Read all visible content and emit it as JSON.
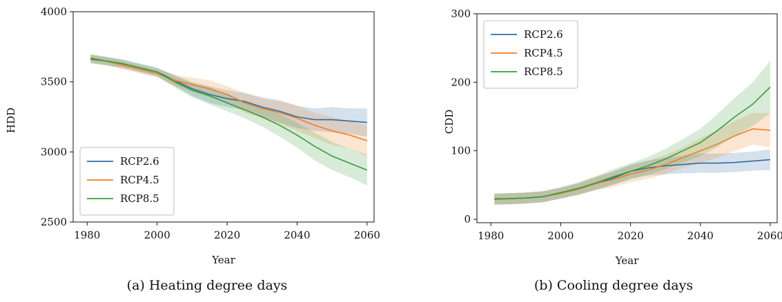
{
  "chart_data": [
    {
      "type": "line",
      "caption": "(a) Heating degree days",
      "title": "",
      "xlabel": "Year",
      "ylabel": "HDD",
      "xlim": [
        1976,
        2062
      ],
      "ylim": [
        2500,
        4000
      ],
      "xticks": [
        1980,
        2000,
        2020,
        2040,
        2060
      ],
      "yticks": [
        2500,
        3000,
        3500,
        4000
      ],
      "legend_position": "lower-left",
      "grid": false,
      "uncertainty_band": true,
      "series": [
        {
          "name": "RCP2.6",
          "color": "#2f6b9e",
          "x": [
            1981,
            1985,
            1990,
            1995,
            2000,
            2005,
            2010,
            2015,
            2020,
            2025,
            2030,
            2035,
            2040,
            2045,
            2050,
            2055,
            2060
          ],
          "y": [
            3660,
            3650,
            3630,
            3600,
            3570,
            3510,
            3450,
            3410,
            3380,
            3360,
            3320,
            3290,
            3250,
            3230,
            3230,
            3220,
            3210
          ],
          "band": [
            30,
            30,
            30,
            30,
            30,
            40,
            50,
            60,
            60,
            60,
            70,
            80,
            80,
            80,
            90,
            90,
            100
          ]
        },
        {
          "name": "RCP4.5",
          "color": "#ef7d22",
          "x": [
            1981,
            1985,
            1990,
            1995,
            2000,
            2005,
            2010,
            2015,
            2020,
            2025,
            2030,
            2035,
            2040,
            2045,
            2050,
            2055,
            2060
          ],
          "y": [
            3665,
            3650,
            3620,
            3590,
            3560,
            3510,
            3480,
            3450,
            3410,
            3350,
            3310,
            3280,
            3240,
            3190,
            3150,
            3120,
            3080
          ],
          "band": [
            30,
            30,
            30,
            30,
            30,
            40,
            50,
            60,
            60,
            70,
            70,
            80,
            90,
            90,
            100,
            100,
            110
          ]
        },
        {
          "name": "RCP8.5",
          "color": "#3a9b3a",
          "x": [
            1981,
            1985,
            1990,
            1995,
            2000,
            2005,
            2010,
            2015,
            2020,
            2025,
            2030,
            2035,
            2040,
            2045,
            2050,
            2055,
            2060
          ],
          "y": [
            3670,
            3650,
            3630,
            3600,
            3570,
            3500,
            3440,
            3400,
            3350,
            3300,
            3250,
            3190,
            3120,
            3040,
            2970,
            2920,
            2870
          ],
          "band": [
            30,
            30,
            30,
            30,
            30,
            40,
            50,
            60,
            60,
            60,
            70,
            80,
            90,
            100,
            100,
            100,
            110
          ]
        }
      ]
    },
    {
      "type": "line",
      "caption": "(b) Cooling degree days",
      "title": "",
      "xlabel": "Year",
      "ylabel": "CDD",
      "xlim": [
        1976,
        2062
      ],
      "ylim": [
        -5,
        300
      ],
      "xticks": [
        1980,
        2000,
        2020,
        2040,
        2060
      ],
      "yticks": [
        0,
        100,
        200,
        300
      ],
      "legend_position": "upper-left",
      "grid": false,
      "uncertainty_band": true,
      "series": [
        {
          "name": "RCP2.6",
          "color": "#2f6b9e",
          "x": [
            1981,
            1985,
            1990,
            1995,
            2000,
            2005,
            2010,
            2015,
            2020,
            2025,
            2030,
            2035,
            2040,
            2045,
            2050,
            2055,
            2060
          ],
          "y": [
            29,
            30,
            31,
            33,
            38,
            44,
            52,
            60,
            70,
            75,
            78,
            80,
            82,
            82,
            83,
            85,
            87
          ],
          "band": [
            8,
            8,
            8,
            8,
            8,
            8,
            9,
            10,
            10,
            11,
            12,
            13,
            14,
            14,
            14,
            14,
            15
          ]
        },
        {
          "name": "RCP4.5",
          "color": "#ef7d22",
          "x": [
            1981,
            1985,
            1990,
            1995,
            2000,
            2005,
            2010,
            2015,
            2020,
            2025,
            2030,
            2035,
            2040,
            2045,
            2050,
            2055,
            2060
          ],
          "y": [
            29,
            30,
            31,
            33,
            38,
            44,
            52,
            58,
            66,
            72,
            80,
            90,
            100,
            110,
            122,
            132,
            130
          ],
          "band": [
            8,
            8,
            8,
            8,
            8,
            9,
            10,
            11,
            12,
            13,
            14,
            15,
            18,
            20,
            22,
            23,
            25
          ]
        },
        {
          "name": "RCP8.5",
          "color": "#3a9b3a",
          "x": [
            1981,
            1985,
            1990,
            1995,
            2000,
            2005,
            2010,
            2015,
            2020,
            2025,
            2030,
            2035,
            2040,
            2045,
            2050,
            2055,
            2060
          ],
          "y": [
            30,
            30,
            31,
            33,
            39,
            45,
            53,
            62,
            70,
            78,
            88,
            100,
            112,
            130,
            150,
            168,
            193
          ],
          "band": [
            8,
            8,
            8,
            8,
            8,
            9,
            10,
            11,
            12,
            13,
            15,
            17,
            20,
            24,
            28,
            32,
            38
          ]
        }
      ]
    }
  ]
}
